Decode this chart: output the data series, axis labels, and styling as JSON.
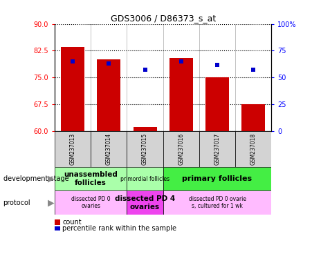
{
  "title": "GDS3006 / D86373_s_at",
  "samples": [
    "GSM237013",
    "GSM237014",
    "GSM237015",
    "GSM237016",
    "GSM237017",
    "GSM237018"
  ],
  "counts": [
    83.5,
    80.0,
    61.2,
    80.5,
    75.0,
    67.5
  ],
  "percentiles": [
    65,
    63,
    57,
    65,
    62,
    57
  ],
  "ylim_left": [
    60,
    90
  ],
  "ylim_right": [
    0,
    100
  ],
  "yticks_left": [
    60,
    67.5,
    75,
    82.5,
    90
  ],
  "yticks_right": [
    0,
    25,
    50,
    75,
    100
  ],
  "ytick_labels_right": [
    "0",
    "25",
    "50",
    "75",
    "100%"
  ],
  "bar_color": "#cc0000",
  "dot_color": "#0000cc",
  "dev_stage_groups": [
    {
      "label": "unassembled\nfollicles",
      "start": 0,
      "end": 2,
      "color": "#aaffaa",
      "fontsize": 7.5,
      "bold": true
    },
    {
      "label": "primordial follicles",
      "start": 2,
      "end": 3,
      "color": "#aaffaa",
      "fontsize": 5.5,
      "bold": false
    },
    {
      "label": "primary follicles",
      "start": 3,
      "end": 6,
      "color": "#44ee44",
      "fontsize": 8.0,
      "bold": true
    }
  ],
  "protocol_groups": [
    {
      "label": "dissected PD 0\novaries",
      "start": 0,
      "end": 2,
      "color": "#ffbbff",
      "fontsize": 5.5,
      "bold": false
    },
    {
      "label": "dissected PD 4\novaries",
      "start": 2,
      "end": 3,
      "color": "#ee44ee",
      "fontsize": 7.5,
      "bold": true
    },
    {
      "label": "dissected PD 0 ovarie\ns, cultured for 1 wk",
      "start": 3,
      "end": 6,
      "color": "#ffbbff",
      "fontsize": 5.5,
      "bold": false
    }
  ],
  "legend_count_color": "#cc0000",
  "legend_dot_color": "#0000cc",
  "background_color": "#ffffff",
  "sample_box_color": "#d3d3d3"
}
